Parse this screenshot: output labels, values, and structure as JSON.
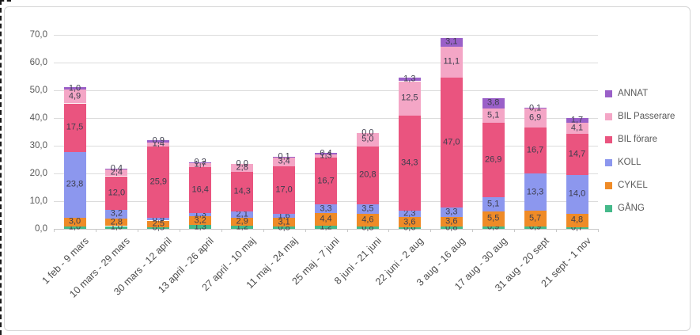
{
  "chart_data": {
    "type": "bar",
    "stacked": true,
    "orientation": "vertical",
    "grid": true,
    "legend_position": "right",
    "decimal_separator": ",",
    "ylim": [
      0,
      70
    ],
    "ytick_step": 10,
    "ytick_labels": [
      "0,0",
      "10,0",
      "20,0",
      "30,0",
      "40,0",
      "50,0",
      "60,0",
      "70,0"
    ],
    "categories": [
      "1 feb - 9 mars",
      "10 mars - 29 mars",
      "30 mars - 12 april",
      "13 april - 26 april",
      "27 april - 10 maj",
      "11 maj - 24 maj",
      "25 maj - 7 juni",
      "8 juni - 21 juni",
      "22 juni - 2 aug",
      "3 aug - 16 aug",
      "17 aug - 30 aug",
      "31 aug - 20 sept",
      "21 sept - 1 nov"
    ],
    "series": [
      {
        "name": "GÅNG",
        "color": "#45b98a",
        "values": [
          1.0,
          1.0,
          0.5,
          1.3,
          1.2,
          0.8,
          1.2,
          0.8,
          0.6,
          0.8,
          0.9,
          0.9,
          0.7
        ]
      },
      {
        "name": "CYKEL",
        "color": "#ef8b27",
        "values": [
          3.0,
          2.8,
          2.5,
          3.2,
          2.9,
          3.1,
          4.4,
          4.6,
          3.6,
          3.6,
          5.5,
          5.7,
          4.8
        ]
      },
      {
        "name": "KOLL",
        "color": "#8c97ee",
        "values": [
          23.8,
          3.2,
          0.9,
          1.3,
          2.1,
          1.6,
          3.3,
          3.5,
          2.3,
          3.3,
          5.1,
          13.3,
          14.0
        ]
      },
      {
        "name": "BIL förare",
        "color": "#ea547f",
        "values": [
          17.5,
          12.0,
          25.9,
          16.4,
          14.3,
          17.0,
          16.7,
          20.8,
          34.3,
          47.0,
          26.9,
          16.7,
          14.7
        ]
      },
      {
        "name": "BIL Passerare",
        "color": "#f4a6c6",
        "values": [
          4.9,
          2.4,
          1.4,
          1.7,
          2.8,
          3.4,
          1.3,
          5.0,
          12.5,
          11.1,
          5.1,
          6.9,
          4.1
        ]
      },
      {
        "name": "ANNAT",
        "color": "#9a60c8",
        "values": [
          1.0,
          0.4,
          0.9,
          0.2,
          0.0,
          0.1,
          0.4,
          0.0,
          1.3,
          3.1,
          3.8,
          0.1,
          1.7
        ]
      }
    ],
    "legend_order_top_to_bottom": [
      "ANNAT",
      "BIL Passerare",
      "BIL förare",
      "KOLL",
      "CYKEL",
      "GÅNG"
    ]
  },
  "colors": {
    "background": "#ffffff",
    "gridline": "#dcdcdc",
    "axis_text": "#595959",
    "data_label_text": "#3d3d4d",
    "frame_border": "#d6d6d6",
    "selection_dash": "#1a1a1a"
  }
}
